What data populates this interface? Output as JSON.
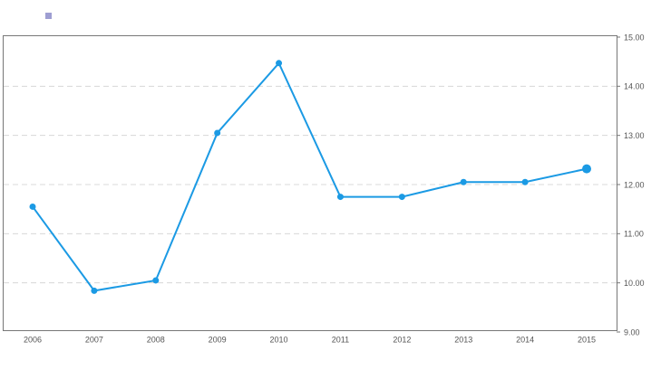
{
  "chart_data": {
    "type": "line",
    "categories": [
      "2006",
      "2007",
      "2008",
      "2009",
      "2010",
      "2011",
      "2012",
      "2013",
      "2014",
      "2015"
    ],
    "series": [
      {
        "color": "#1b9ae4",
        "values": [
          11.55,
          9.84,
          10.05,
          13.05,
          14.47,
          11.75,
          11.75,
          12.05,
          12.05,
          12.32
        ]
      }
    ],
    "ylim": [
      9,
      15
    ],
    "yticks": [
      {
        "value": 9,
        "label": "9.00"
      },
      {
        "value": 10,
        "label": "10.00"
      },
      {
        "value": 11,
        "label": "11.00"
      },
      {
        "value": 12,
        "label": "12.00"
      },
      {
        "value": 13,
        "label": "13.00"
      },
      {
        "value": 14,
        "label": "14.00"
      },
      {
        "value": 15,
        "label": "15.00"
      }
    ],
    "grid": true
  }
}
